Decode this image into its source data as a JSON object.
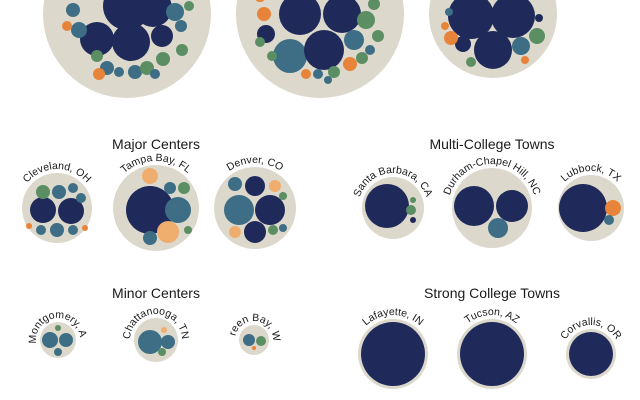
{
  "colors": {
    "background_disc": "#dcd8cc",
    "navy": "#1f2a5a",
    "teal": "#3d6e85",
    "green": "#5b8f63",
    "orange": "#e8843a",
    "peach": "#efae6e"
  },
  "chart_data": {
    "type": "packed-bubble",
    "groups": [
      {
        "title": "",
        "cities": [
          {
            "label": ""
          },
          {
            "label": ""
          },
          {
            "label": ""
          }
        ]
      },
      {
        "title": "Major Centers",
        "cities": [
          {
            "label": "Cleveland, OH"
          },
          {
            "label": "Tampa Bay, FL"
          },
          {
            "label": "Denver, CO"
          }
        ]
      },
      {
        "title": "Multi-College Towns",
        "cities": [
          {
            "label": "Santa Barbara, CA"
          },
          {
            "label": "Durham-Chapel Hill, NC"
          },
          {
            "label": "Lubbock, TX"
          }
        ]
      },
      {
        "title": "Minor Centers",
        "cities": [
          {
            "label": "Montgomery, AL"
          },
          {
            "label": "Chattanooga, TN"
          },
          {
            "label": "Green Bay, WI"
          }
        ]
      },
      {
        "title": "Strong College Towns",
        "cities": [
          {
            "label": "Lafayette, IN"
          },
          {
            "label": "Tucson, AZ"
          },
          {
            "label": "Corvallis, OR"
          }
        ]
      }
    ]
  }
}
